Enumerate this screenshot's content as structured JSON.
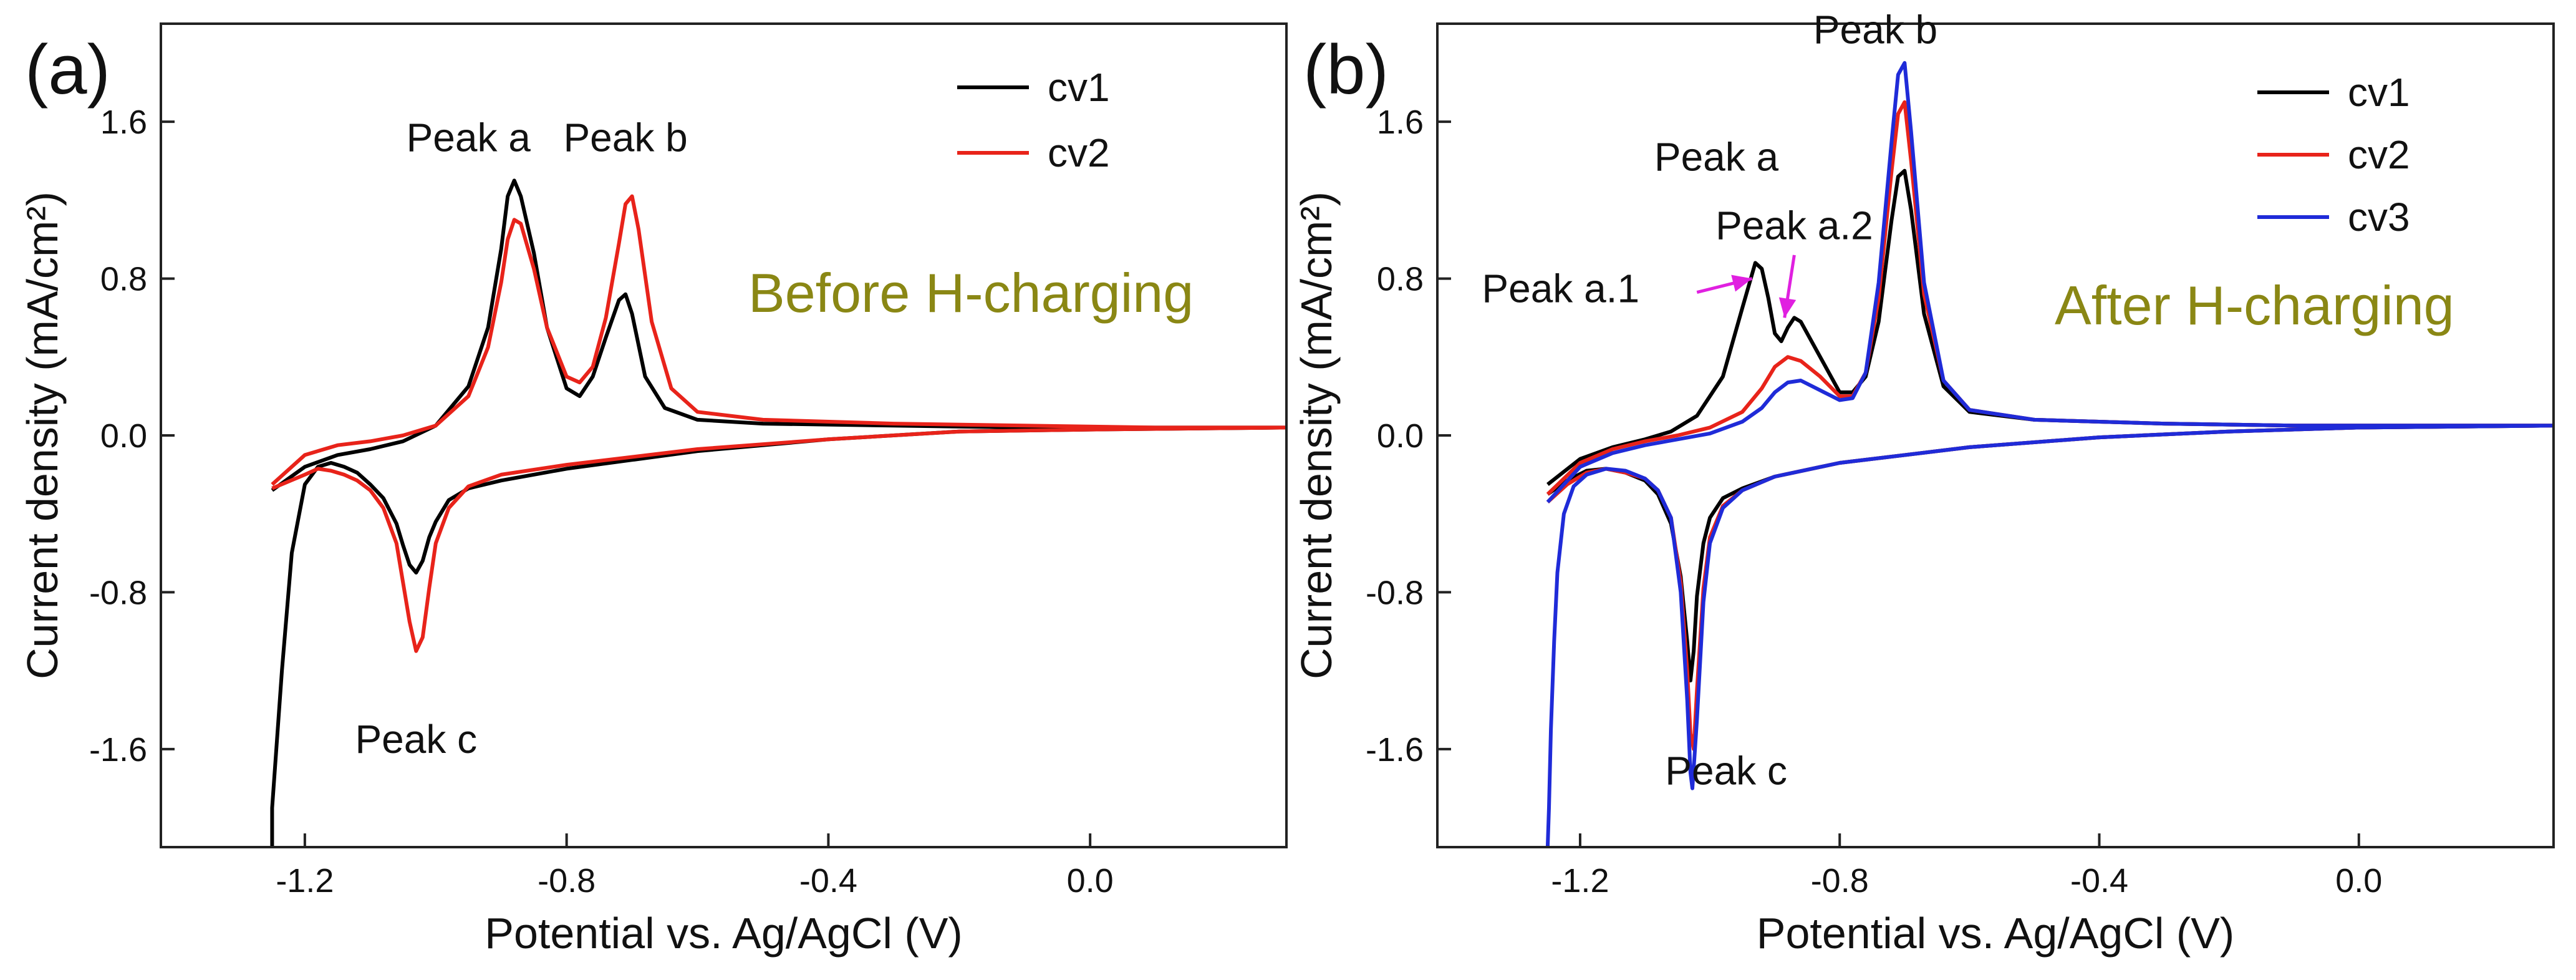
{
  "chart_data": [
    {
      "type": "line",
      "panel_label": "(a)",
      "xlabel": "Potential vs. Ag/AgCl (V)",
      "ylabel": "Current density (mA/cm²)",
      "xlim": [
        -1.42,
        0.3
      ],
      "ylim": [
        -2.1,
        2.1
      ],
      "xticks": [
        -1.2,
        -0.8,
        -0.4,
        0.0
      ],
      "xtick_labels": [
        "-1.2",
        "-0.8",
        "-0.4",
        "0.0"
      ],
      "yticks": [
        -1.6,
        -0.8,
        0.0,
        0.8,
        1.6
      ],
      "ytick_labels": [
        "-1.6",
        "-0.8",
        "0.0",
        "0.8",
        "1.6"
      ],
      "legend": {
        "position": "top-right",
        "entries": [
          {
            "name": "cv1",
            "color": "#000000"
          },
          {
            "name": "cv2",
            "color": "#e8231a"
          }
        ]
      },
      "condition": {
        "text": "Before H-charging",
        "color": "#8a8714"
      },
      "annotations": [
        {
          "text": "Peak a",
          "x": -0.95,
          "y": 1.45,
          "color": "#111111"
        },
        {
          "text": "Peak b",
          "x": -0.71,
          "y": 1.45,
          "color": "#111111"
        },
        {
          "text": "Peak c",
          "x": -1.03,
          "y": -1.62,
          "color": "#111111"
        }
      ],
      "series": [
        {
          "name": "cv1",
          "color": "#000000",
          "x": [
            -1.25,
            -1.25,
            -1.235,
            -1.22,
            -1.2,
            -1.18,
            -1.16,
            -1.14,
            -1.12,
            -1.1,
            -1.08,
            -1.06,
            -1.05,
            -1.04,
            -1.03,
            -1.02,
            -1.01,
            -1.0,
            -0.98,
            -0.95,
            -0.9,
            -0.8,
            -0.6,
            -0.4,
            -0.2,
            0.0,
            0.3,
            0.3,
            0.1,
            -0.1,
            -0.3,
            -0.5,
            -0.6,
            -0.65,
            -0.68,
            -0.7,
            -0.71,
            -0.72,
            -0.74,
            -0.76,
            -0.78,
            -0.8,
            -0.83,
            -0.85,
            -0.87,
            -0.88,
            -0.89,
            -0.9,
            -0.92,
            -0.95,
            -1.0,
            -1.05,
            -1.1,
            -1.15,
            -1.2,
            -1.25
          ],
          "y": [
            -2.1,
            -1.9,
            -1.2,
            -0.6,
            -0.25,
            -0.16,
            -0.14,
            -0.16,
            -0.19,
            -0.25,
            -0.32,
            -0.45,
            -0.56,
            -0.66,
            -0.7,
            -0.64,
            -0.52,
            -0.44,
            -0.33,
            -0.27,
            -0.23,
            -0.17,
            -0.08,
            -0.02,
            0.02,
            0.03,
            0.04,
            0.04,
            0.04,
            0.04,
            0.05,
            0.06,
            0.08,
            0.14,
            0.3,
            0.62,
            0.72,
            0.69,
            0.5,
            0.3,
            0.2,
            0.24,
            0.55,
            0.93,
            1.22,
            1.3,
            1.22,
            0.95,
            0.55,
            0.25,
            0.05,
            -0.03,
            -0.07,
            -0.1,
            -0.16,
            -0.28
          ]
        },
        {
          "name": "cv2",
          "color": "#e8231a",
          "x": [
            -1.25,
            -1.2,
            -1.18,
            -1.16,
            -1.14,
            -1.12,
            -1.1,
            -1.08,
            -1.06,
            -1.05,
            -1.04,
            -1.03,
            -1.02,
            -1.01,
            -1.0,
            -0.98,
            -0.95,
            -0.9,
            -0.8,
            -0.6,
            -0.4,
            -0.2,
            0.0,
            0.3,
            0.3,
            0.1,
            -0.1,
            -0.3,
            -0.5,
            -0.6,
            -0.64,
            -0.67,
            -0.69,
            -0.7,
            -0.71,
            -0.72,
            -0.74,
            -0.76,
            -0.78,
            -0.8,
            -0.83,
            -0.85,
            -0.87,
            -0.88,
            -0.89,
            -0.9,
            -0.92,
            -0.95,
            -1.0,
            -1.05,
            -1.1,
            -1.15,
            -1.2,
            -1.25
          ],
          "y": [
            -0.27,
            -0.2,
            -0.17,
            -0.18,
            -0.2,
            -0.23,
            -0.28,
            -0.37,
            -0.55,
            -0.75,
            -0.95,
            -1.1,
            -1.03,
            -0.78,
            -0.55,
            -0.37,
            -0.26,
            -0.2,
            -0.15,
            -0.07,
            -0.02,
            0.02,
            0.03,
            0.04,
            0.04,
            0.04,
            0.05,
            0.06,
            0.08,
            0.12,
            0.24,
            0.58,
            1.05,
            1.22,
            1.18,
            0.98,
            0.6,
            0.35,
            0.27,
            0.3,
            0.55,
            0.85,
            1.08,
            1.1,
            1.0,
            0.78,
            0.45,
            0.2,
            0.05,
            0.0,
            -0.03,
            -0.05,
            -0.1,
            -0.25
          ]
        }
      ]
    },
    {
      "type": "line",
      "panel_label": "(b)",
      "xlabel": "Potential vs. Ag/AgCl (V)",
      "ylabel": "Current density (mA/cm²)",
      "xlim": [
        -1.42,
        0.3
      ],
      "ylim": [
        -2.1,
        2.1
      ],
      "xticks": [
        -1.2,
        -0.8,
        -0.4,
        0.0
      ],
      "xtick_labels": [
        "-1.2",
        "-0.8",
        "-0.4",
        "0.0"
      ],
      "yticks": [
        -1.6,
        -0.8,
        0.0,
        0.8,
        1.6
      ],
      "ytick_labels": [
        "-1.6",
        "-0.8",
        "0.0",
        "0.8",
        "1.6"
      ],
      "legend": {
        "position": "top-right",
        "entries": [
          {
            "name": "cv1",
            "color": "#000000"
          },
          {
            "name": "cv2",
            "color": "#e8231a"
          },
          {
            "name": "cv3",
            "color": "#1f2bd8"
          }
        ]
      },
      "condition": {
        "text": "After H-charging",
        "color": "#8a8714"
      },
      "annotations": [
        {
          "text": "Peak a",
          "x": -0.99,
          "y": 1.35,
          "color": "#111111"
        },
        {
          "text": "Peak b",
          "x": -0.745,
          "y": 2.0,
          "color": "#111111"
        },
        {
          "text": "Peak c",
          "x": -0.975,
          "y": -1.78,
          "color": "#111111"
        },
        {
          "text": "Peak a.2",
          "x": -0.87,
          "y": 1.0,
          "color": "#e020e0"
        },
        {
          "text": "Peak a.1",
          "x": -1.23,
          "y": 0.68,
          "color": "#e020e0"
        }
      ],
      "arrows": [
        {
          "from": [
            -1.02,
            0.73
          ],
          "to": [
            -0.935,
            0.8
          ],
          "color": "#e020e0"
        },
        {
          "from": [
            -0.87,
            0.92
          ],
          "to": [
            -0.885,
            0.6
          ],
          "color": "#e020e0"
        }
      ],
      "series": [
        {
          "name": "cv1",
          "color": "#000000",
          "x": [
            -1.25,
            -1.22,
            -1.19,
            -1.16,
            -1.13,
            -1.1,
            -1.08,
            -1.06,
            -1.045,
            -1.035,
            -1.03,
            -1.025,
            -1.02,
            -1.01,
            -1.0,
            -0.98,
            -0.95,
            -0.9,
            -0.8,
            -0.6,
            -0.4,
            -0.2,
            0.0,
            0.3,
            0.3,
            0.1,
            -0.1,
            -0.3,
            -0.5,
            -0.6,
            -0.64,
            -0.67,
            -0.69,
            -0.7,
            -0.71,
            -0.72,
            -0.74,
            -0.76,
            -0.78,
            -0.8,
            -0.83,
            -0.86,
            -0.87,
            -0.88,
            -0.89,
            -0.9,
            -0.91,
            -0.92,
            -0.93,
            -0.95,
            -0.98,
            -1.02,
            -1.06,
            -1.1,
            -1.15,
            -1.2,
            -1.25
          ],
          "y": [
            -0.3,
            -0.23,
            -0.18,
            -0.17,
            -0.19,
            -0.23,
            -0.3,
            -0.45,
            -0.72,
            -1.05,
            -1.25,
            -1.1,
            -0.82,
            -0.55,
            -0.42,
            -0.32,
            -0.27,
            -0.21,
            -0.14,
            -0.06,
            -0.01,
            0.02,
            0.04,
            0.05,
            0.05,
            0.05,
            0.05,
            0.06,
            0.08,
            0.12,
            0.25,
            0.62,
            1.15,
            1.35,
            1.32,
            1.1,
            0.58,
            0.3,
            0.22,
            0.22,
            0.4,
            0.58,
            0.6,
            0.55,
            0.48,
            0.52,
            0.7,
            0.85,
            0.88,
            0.65,
            0.3,
            0.1,
            0.02,
            -0.02,
            -0.06,
            -0.12,
            -0.25
          ]
        },
        {
          "name": "cv2",
          "color": "#e8231a",
          "x": [
            -1.25,
            -1.22,
            -1.19,
            -1.16,
            -1.13,
            -1.1,
            -1.08,
            -1.06,
            -1.045,
            -1.035,
            -1.03,
            -1.025,
            -1.02,
            -1.01,
            -1.0,
            -0.98,
            -0.95,
            -0.9,
            -0.8,
            -0.6,
            -0.4,
            -0.2,
            0.0,
            0.3,
            0.3,
            0.1,
            -0.1,
            -0.3,
            -0.5,
            -0.6,
            -0.64,
            -0.67,
            -0.69,
            -0.7,
            -0.71,
            -0.72,
            -0.74,
            -0.76,
            -0.78,
            -0.8,
            -0.83,
            -0.86,
            -0.88,
            -0.9,
            -0.92,
            -0.95,
            -1.0,
            -1.05,
            -1.1,
            -1.15,
            -1.2,
            -1.25
          ],
          "y": [
            -0.34,
            -0.25,
            -0.19,
            -0.17,
            -0.19,
            -0.22,
            -0.28,
            -0.42,
            -0.75,
            -1.2,
            -1.52,
            -1.6,
            -1.3,
            -0.78,
            -0.52,
            -0.36,
            -0.28,
            -0.21,
            -0.14,
            -0.06,
            -0.01,
            0.02,
            0.04,
            0.05,
            0.05,
            0.05,
            0.05,
            0.06,
            0.08,
            0.13,
            0.28,
            0.72,
            1.4,
            1.7,
            1.64,
            1.35,
            0.7,
            0.32,
            0.2,
            0.2,
            0.3,
            0.38,
            0.4,
            0.35,
            0.24,
            0.12,
            0.04,
            0.0,
            -0.03,
            -0.07,
            -0.14,
            -0.3
          ]
        },
        {
          "name": "cv3",
          "color": "#1f2bd8",
          "x": [
            -1.25,
            -1.248,
            -1.245,
            -1.24,
            -1.235,
            -1.225,
            -1.21,
            -1.19,
            -1.16,
            -1.13,
            -1.1,
            -1.08,
            -1.06,
            -1.045,
            -1.035,
            -1.03,
            -1.027,
            -1.02,
            -1.01,
            -1.0,
            -0.98,
            -0.95,
            -0.9,
            -0.8,
            -0.6,
            -0.4,
            -0.2,
            0.0,
            0.3,
            0.3,
            0.1,
            -0.1,
            -0.3,
            -0.5,
            -0.6,
            -0.64,
            -0.67,
            -0.69,
            -0.7,
            -0.71,
            -0.72,
            -0.74,
            -0.76,
            -0.78,
            -0.8,
            -0.83,
            -0.86,
            -0.88,
            -0.9,
            -0.92,
            -0.95,
            -1.0,
            -1.05,
            -1.1,
            -1.15,
            -1.2,
            -1.25
          ],
          "y": [
            -2.1,
            -1.9,
            -1.5,
            -1.05,
            -0.7,
            -0.4,
            -0.26,
            -0.2,
            -0.17,
            -0.18,
            -0.22,
            -0.28,
            -0.42,
            -0.8,
            -1.35,
            -1.72,
            -1.8,
            -1.45,
            -0.85,
            -0.55,
            -0.37,
            -0.28,
            -0.21,
            -0.14,
            -0.06,
            -0.01,
            0.02,
            0.04,
            0.05,
            0.05,
            0.05,
            0.05,
            0.06,
            0.08,
            0.13,
            0.28,
            0.78,
            1.55,
            1.9,
            1.84,
            1.5,
            0.78,
            0.32,
            0.19,
            0.18,
            0.23,
            0.28,
            0.27,
            0.22,
            0.14,
            0.07,
            0.01,
            -0.02,
            -0.05,
            -0.09,
            -0.16,
            -0.34
          ]
        }
      ]
    }
  ]
}
